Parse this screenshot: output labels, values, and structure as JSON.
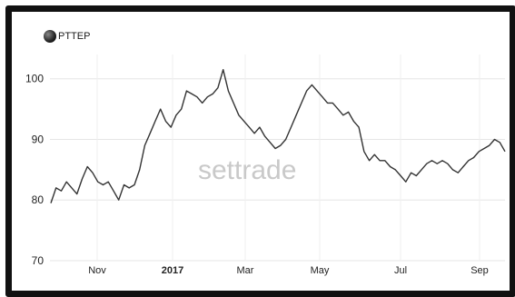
{
  "chart_data": {
    "type": "line",
    "legend": "PTTEP",
    "watermark": "settrade",
    "title": "",
    "xlabel": "",
    "ylabel": "",
    "ylim": [
      70,
      104
    ],
    "yticks": [
      70,
      80,
      90,
      100
    ],
    "x_labels": [
      "Nov",
      "2017",
      "Mar",
      "May",
      "Jul",
      "Sep"
    ],
    "grid": true,
    "line_color": "#333333",
    "series": [
      {
        "values": [
          79.5,
          82,
          81.5,
          83,
          82,
          81,
          83.5,
          85.5,
          84.5,
          83,
          82.5,
          83,
          81.5,
          80,
          82.5,
          82,
          82.5,
          85,
          89,
          91,
          93,
          95,
          93,
          92,
          94,
          95,
          98,
          97.5,
          97,
          96,
          97,
          97.5,
          98.5,
          101.5,
          98,
          96,
          94,
          93,
          92,
          91,
          92,
          90.5,
          89.5,
          88.5,
          89,
          90,
          92,
          94,
          96,
          98,
          99,
          98,
          97,
          96,
          96,
          95,
          94,
          94.5,
          93,
          92,
          88,
          86.5,
          87.5,
          86.5,
          86.5,
          85.5,
          85,
          84,
          83,
          84.5,
          84,
          85,
          86,
          86.5,
          86,
          86.5,
          86,
          85,
          84.5,
          85.5,
          86.5,
          87,
          88,
          88.5,
          89,
          90,
          89.5,
          88
        ]
      }
    ]
  }
}
